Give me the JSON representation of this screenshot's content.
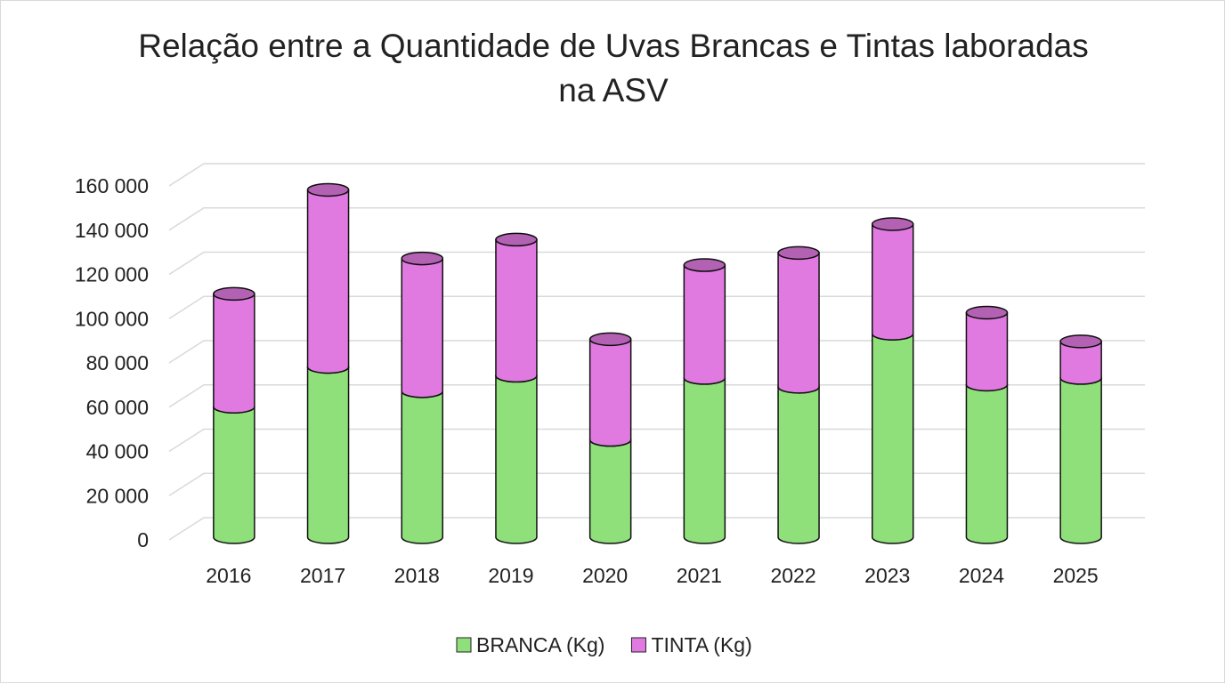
{
  "chart_data": {
    "type": "stacked-cylinder",
    "title": "Relação entre a Quantidade de Uvas Brancas e Tintas laboradas na ASV",
    "categories": [
      "2016",
      "2017",
      "2018",
      "2019",
      "2020",
      "2021",
      "2022",
      "2023",
      "2024",
      "2025"
    ],
    "series": [
      {
        "name": "BRANCA (Kg)",
        "color": "#8fe07a",
        "values": [
          59000,
          77000,
          66000,
          73000,
          44000,
          72000,
          68000,
          92000,
          69000,
          72000
        ]
      },
      {
        "name": "TINTA (Kg)",
        "color": "#e07ae0",
        "values": [
          51000,
          80000,
          60000,
          61500,
          45500,
          51000,
          60500,
          49500,
          32500,
          16500
        ]
      }
    ],
    "ylim": [
      0,
      160000
    ],
    "yticks": [
      {
        "value": 0,
        "label": "0"
      },
      {
        "value": 20000,
        "label": "20 000"
      },
      {
        "value": 40000,
        "label": "40 000"
      },
      {
        "value": 60000,
        "label": "60 000"
      },
      {
        "value": 80000,
        "label": "80 000"
      },
      {
        "value": 100000,
        "label": "100 000"
      },
      {
        "value": 120000,
        "label": "120 000"
      },
      {
        "value": 140000,
        "label": "140 000"
      },
      {
        "value": 160000,
        "label": "160 000"
      }
    ],
    "grid": true,
    "legend": "bottom"
  }
}
